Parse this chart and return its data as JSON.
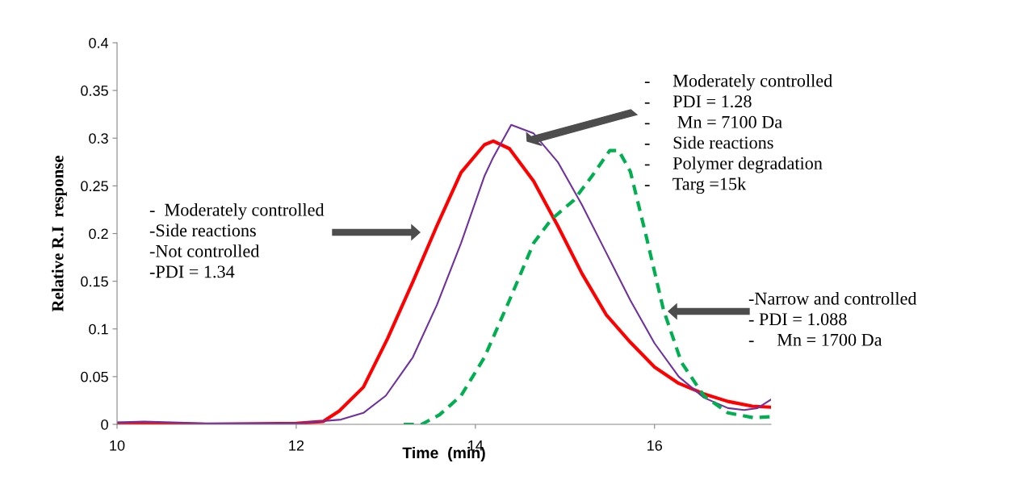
{
  "chart_data": {
    "type": "line",
    "xlabel": "Time  (min)",
    "ylabel": "Relative R.I  response",
    "xlim": [
      10,
      17.3
    ],
    "xticks": [
      10,
      12,
      14,
      16
    ],
    "ylim": [
      0,
      0.4
    ],
    "yticks": [
      0,
      0.05,
      0.1,
      0.15,
      0.2,
      0.25,
      0.3,
      0.35,
      0.4
    ],
    "grid": false,
    "legend": false,
    "marker": "none",
    "series": [
      {
        "color": "#ff0000",
        "line_style": "solid",
        "x": [
          10,
          11,
          12,
          12.3,
          12.48,
          12.75,
          13.02,
          13.3,
          13.57,
          13.84,
          14.1,
          14.2,
          14.38,
          14.65,
          14.92,
          15.19,
          15.46,
          15.73,
          16,
          16.27,
          16.55,
          16.82,
          17.09,
          17.3
        ],
        "values": [
          0.001,
          0,
          0.001,
          0.003,
          0.014,
          0.039,
          0.09,
          0.149,
          0.208,
          0.264,
          0.293,
          0.297,
          0.289,
          0.255,
          0.208,
          0.158,
          0.115,
          0.086,
          0.06,
          0.043,
          0.032,
          0.024,
          0.019,
          0.018
        ]
      },
      {
        "color": "#7030a0",
        "line_style": "solid",
        "x": [
          10,
          10.3,
          11,
          12,
          12.5,
          12.75,
          13,
          13.3,
          13.57,
          13.84,
          14.1,
          14.2,
          14.4,
          14.65,
          14.92,
          15.19,
          15.46,
          15.73,
          16,
          16.27,
          16.55,
          16.82,
          17,
          17.15,
          17.3
        ],
        "values": [
          0.002,
          0.003,
          0.001,
          0.001,
          0.005,
          0.012,
          0.03,
          0.07,
          0.125,
          0.19,
          0.26,
          0.28,
          0.314,
          0.305,
          0.275,
          0.23,
          0.18,
          0.13,
          0.085,
          0.05,
          0.028,
          0.017,
          0.015,
          0.017,
          0.026
        ]
      },
      {
        "color": "#00b050",
        "line_style": "dashed",
        "x": [
          13.2,
          13.4,
          13.6,
          13.84,
          14.1,
          14.38,
          14.65,
          14.85,
          15.1,
          15.3,
          15.5,
          15.6,
          15.73,
          15.9,
          16.1,
          16.3,
          16.55,
          16.82,
          17.1,
          17.3
        ],
        "values": [
          0,
          0,
          0.01,
          0.03,
          0.07,
          0.13,
          0.19,
          0.215,
          0.235,
          0.26,
          0.287,
          0.287,
          0.265,
          0.2,
          0.12,
          0.065,
          0.03,
          0.012,
          0.007,
          0.008
        ]
      }
    ],
    "annotations": [
      "-  Moderately controlled\n-Side reactions\n-Not controlled\n-PDI = 1.34",
      "-     Moderately controlled\n-     PDI = 1.28\n-      Mn = 7100 Da\n-     Side reactions\n-     Polymer degradation\n-     Targ =15k",
      "-Narrow and controlled\n- PDI = 1.088\n-     Mn = 1700 Da"
    ]
  }
}
